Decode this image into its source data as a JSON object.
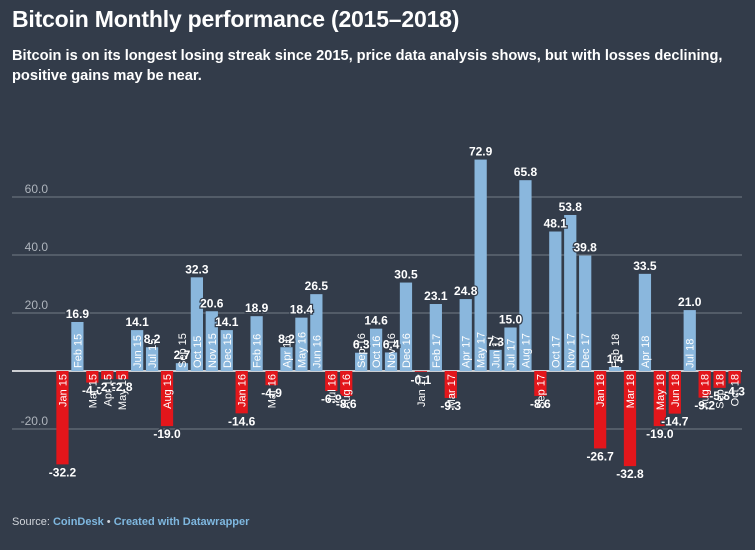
{
  "title": "Bitcoin Monthly performance (2015–2018)",
  "subtitle": "Bitcoin is on its longest losing streak since 2015, price data analysis shows, but with losses declining, positive gains may be near.",
  "footer": {
    "source_label": "Source:",
    "source_name": "CoinDesk",
    "separator": "•",
    "credit": "Created with Datawrapper"
  },
  "colors": {
    "positive": "#8ab7dd",
    "negative": "#e3161b",
    "background": "#333c4a",
    "grid": "#8a929c",
    "tick": "#aeb4bc"
  },
  "chart_data": {
    "type": "bar",
    "title": "Bitcoin Monthly performance (2015–2018)",
    "xlabel": "",
    "ylabel": "",
    "ylim": [
      -35,
      78
    ],
    "yticks": [
      -20,
      20,
      40,
      60
    ],
    "ytick_labels": [
      "-20.0",
      "20.0",
      "40.0",
      "60.0"
    ],
    "grid": true,
    "categories": [
      "Jan 15",
      "Feb 15",
      "Mar 15",
      "Apr 15",
      "May 15",
      "Jun 15",
      "Jul 15",
      "Aug 15",
      "Sep 15",
      "Oct 15",
      "Nov 15",
      "Dec 15",
      "Jan 16",
      "Feb 16",
      "Mar 16",
      "Apr 16",
      "May 16",
      "Jun 16",
      "Jul 16",
      "Aug 16",
      "Sep 16",
      "Oct 16",
      "Nov 16",
      "Dec 16",
      "Jan 17",
      "Feb 17",
      "Mar 17",
      "Apr 17",
      "May 17",
      "Jun 17",
      "Jul 17",
      "Aug 17",
      "Sep 17",
      "Oct 17",
      "Nov 17",
      "Dec 17",
      "Jan 18",
      "Feb 18",
      "Mar 18",
      "Apr 18",
      "May 18",
      "Jun 18",
      "Jul 18",
      "Aug 18",
      "Sep 18",
      "Oct 18"
    ],
    "values": [
      -32.2,
      16.9,
      -4.0,
      -2.8,
      -2.8,
      14.1,
      8.2,
      -19.0,
      2.7,
      32.3,
      20.6,
      14.1,
      -14.6,
      18.9,
      -4.9,
      8.2,
      18.4,
      26.5,
      -6.9,
      -8.6,
      6.3,
      14.6,
      6.4,
      30.5,
      -0.1,
      23.1,
      -9.3,
      24.8,
      72.9,
      7.3,
      15.0,
      65.8,
      -8.6,
      48.1,
      53.8,
      39.8,
      -26.7,
      1.4,
      -32.8,
      33.5,
      -19.0,
      -14.7,
      21.0,
      -9.2,
      -5.8,
      -4.3
    ],
    "value_labels": [
      "-32.2",
      "16.9",
      "-4.0",
      "-2.8",
      "-2.8",
      "14.1",
      "8.2",
      "-19.0",
      "2.7",
      "32.3",
      "20.6",
      "14.1",
      "-14.6",
      "18.9",
      "-4.9",
      "8.2",
      "18.4",
      "26.5",
      "-6.9",
      "-8.6",
      "6.3",
      "14.6",
      "6.4",
      "30.5",
      "-0.1",
      "23.1",
      "-9.3",
      "24.8",
      "72.9",
      "7.3",
      "15.0",
      "65.8",
      "-8.6",
      "48.1",
      "53.8",
      "39.8",
      "-26.7",
      "1.4",
      "-32.8",
      "33.5",
      "-19.0",
      "-14.7",
      "21.0",
      "-9.2",
      "-5.8",
      "-4.3"
    ]
  }
}
